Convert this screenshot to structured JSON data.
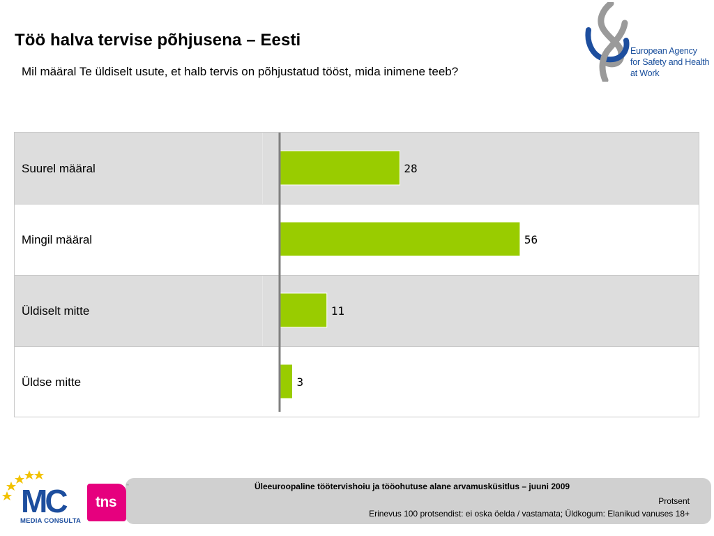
{
  "header": {
    "title": "Töö halva tervise põhjusena – Eesti",
    "subtitle": "Mil määral Te üldiselt usute, et halb tervis on põhjustatud tööst, mida inimene teeb?"
  },
  "logos": {
    "agency": [
      "European Agency",
      "for Safety and Health",
      "at Work"
    ],
    "media_consulta": {
      "mark": "MC",
      "name": "MEDIA CONSULTA"
    },
    "tns": "tns"
  },
  "colors": {
    "bar": "#99cc00",
    "shaded_row": "#dddddd",
    "axis": "#808080",
    "brand_blue": "#1d4e9e",
    "tns_pink": "#e6007e"
  },
  "chart_data": {
    "type": "bar",
    "orientation": "horizontal",
    "categories": [
      "Suurel määral",
      "Mingil määral",
      "Üldiselt mitte",
      "Üldse mitte"
    ],
    "values": [
      28,
      56,
      11,
      3
    ],
    "xlim": [
      0,
      95
    ],
    "grid": false,
    "legend": "none"
  },
  "footer": {
    "survey": "Üleeuroopaline töötervishoiu ja tööohutuse alane arvamusküsitlus – juuni 2009",
    "unit": "Protsent",
    "note": "Erinevus 100 protsendist: ei oska öelda / vastamata; Üldkogum: Elanikud vanuses 18+"
  }
}
